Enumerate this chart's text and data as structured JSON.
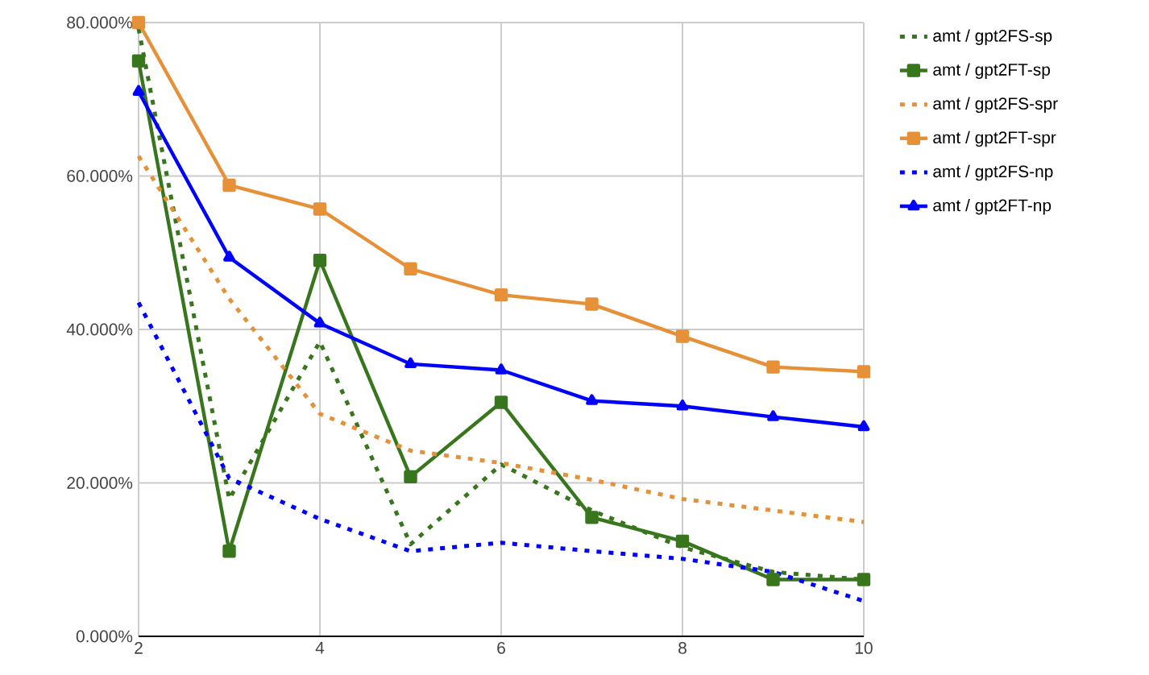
{
  "chart_data": {
    "type": "line",
    "x": [
      2,
      3,
      4,
      5,
      6,
      7,
      8,
      9,
      10
    ],
    "series": [
      {
        "name": "amt / gpt2FS-sp",
        "color": "#38761d",
        "line_style": "dotted",
        "marker": "none",
        "values": [
          79.2,
          17.9,
          38.4,
          12.0,
          22.4,
          16.4,
          11.6,
          8.4,
          7.4
        ]
      },
      {
        "name": "amt / gpt2FT-sp",
        "color": "#38761d",
        "line_style": "solid",
        "marker": "square",
        "values": [
          75.0,
          11.1,
          49.0,
          20.8,
          30.5,
          15.5,
          12.4,
          7.4,
          7.4
        ]
      },
      {
        "name": "amt / gpt2FS-spr",
        "color": "#e69138",
        "line_style": "dotted",
        "marker": "none",
        "values": [
          62.6,
          44.0,
          29.0,
          24.2,
          22.6,
          20.4,
          17.9,
          16.4,
          14.9
        ]
      },
      {
        "name": "amt / gpt2FT-spr",
        "color": "#e69138",
        "line_style": "solid",
        "marker": "square",
        "values": [
          80.0,
          58.8,
          55.7,
          47.9,
          44.5,
          43.3,
          39.1,
          35.1,
          34.5
        ]
      },
      {
        "name": "amt / gpt2FS-np",
        "color": "#0000ff",
        "line_style": "dotted",
        "marker": "none",
        "values": [
          43.5,
          20.6,
          15.3,
          11.1,
          12.2,
          11.1,
          10.1,
          8.4,
          4.6
        ]
      },
      {
        "name": "amt / gpt2FT-np",
        "color": "#0000ff",
        "line_style": "solid",
        "marker": "triangle",
        "values": [
          71.0,
          49.4,
          40.8,
          35.5,
          34.7,
          30.7,
          30.0,
          28.6,
          27.3
        ]
      }
    ],
    "xlim": [
      2,
      10
    ],
    "xticks": [
      2,
      4,
      6,
      8,
      10
    ],
    "ylim": [
      0,
      80
    ],
    "yticks": [
      {
        "value": 0,
        "label": "0.000%"
      },
      {
        "value": 20,
        "label": "20.000%"
      },
      {
        "value": 40,
        "label": "40.000%"
      },
      {
        "value": 60,
        "label": "60.000%"
      },
      {
        "value": 80,
        "label": "80.000%"
      }
    ],
    "grid": true,
    "legend": "right"
  }
}
